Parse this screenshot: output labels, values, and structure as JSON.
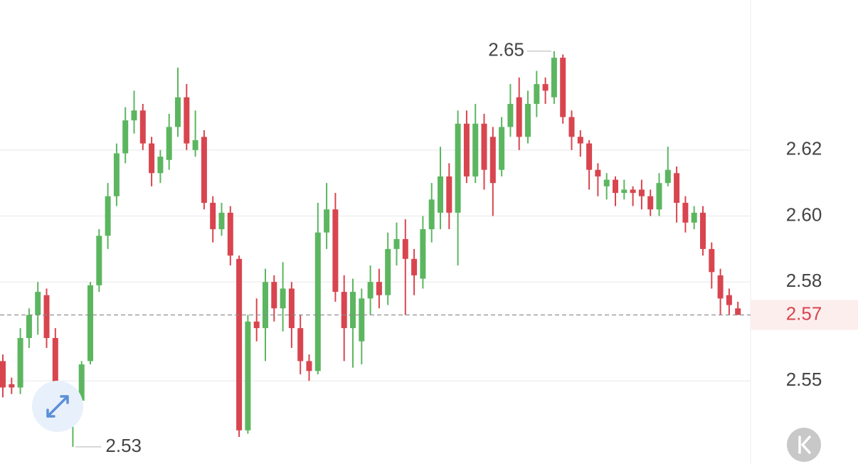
{
  "chart_data": {
    "type": "candlestick",
    "open": [
      2.556,
      2.549,
      2.548,
      2.563,
      2.57,
      2.576,
      2.563,
      2.546,
      2.539,
      2.544,
      2.556,
      2.579,
      2.594,
      2.606,
      2.619,
      2.629,
      2.632,
      2.622,
      2.613,
      2.617,
      2.627,
      2.636,
      2.62,
      2.624,
      2.604,
      2.596,
      2.601,
      2.587,
      2.535,
      2.568,
      2.566,
      2.58,
      2.572,
      2.578,
      2.566,
      2.556,
      2.553,
      2.595,
      2.602,
      2.577,
      2.566,
      2.562,
      2.575,
      2.58,
      2.576,
      2.59,
      2.593,
      2.587,
      2.581,
      2.596,
      2.601,
      2.612,
      2.601,
      2.628,
      2.612,
      2.628,
      2.624,
      2.614,
      2.627,
      2.636,
      2.624,
      2.634,
      2.64,
      2.636,
      2.648,
      2.63,
      2.624,
      2.622,
      2.614,
      2.609,
      2.611,
      2.607,
      2.608,
      2.608,
      2.606,
      2.602,
      2.61,
      2.613,
      2.604,
      2.598,
      2.601,
      2.59,
      2.582,
      2.576,
      2.572
    ],
    "high": [
      2.558,
      2.551,
      2.566,
      2.572,
      2.58,
      2.578,
      2.566,
      2.548,
      2.546,
      2.556,
      2.58,
      2.596,
      2.61,
      2.622,
      2.633,
      2.638,
      2.634,
      2.624,
      2.62,
      2.631,
      2.645,
      2.64,
      2.632,
      2.626,
      2.606,
      2.604,
      2.603,
      2.588,
      2.57,
      2.575,
      2.584,
      2.582,
      2.586,
      2.58,
      2.57,
      2.558,
      2.604,
      2.61,
      2.607,
      2.582,
      2.581,
      2.578,
      2.585,
      2.584,
      2.595,
      2.598,
      2.599,
      2.59,
      2.6,
      2.61,
      2.621,
      2.616,
      2.632,
      2.632,
      2.634,
      2.631,
      2.627,
      2.63,
      2.64,
      2.642,
      2.638,
      2.644,
      2.642,
      2.65,
      2.649,
      2.632,
      2.626,
      2.623,
      2.616,
      2.613,
      2.612,
      2.611,
      2.609,
      2.611,
      2.608,
      2.613,
      2.621,
      2.615,
      2.606,
      2.603,
      2.603,
      2.592,
      2.584,
      2.578,
      2.574
    ],
    "low": [
      2.545,
      2.546,
      2.546,
      2.56,
      2.564,
      2.56,
      2.54,
      2.538,
      2.53,
      2.541,
      2.555,
      2.577,
      2.59,
      2.603,
      2.616,
      2.625,
      2.62,
      2.609,
      2.61,
      2.614,
      2.624,
      2.62,
      2.618,
      2.602,
      2.592,
      2.594,
      2.585,
      2.533,
      2.534,
      2.562,
      2.556,
      2.568,
      2.565,
      2.56,
      2.552,
      2.55,
      2.552,
      2.59,
      2.574,
      2.556,
      2.554,
      2.555,
      2.57,
      2.572,
      2.573,
      2.585,
      2.57,
      2.576,
      2.578,
      2.592,
      2.596,
      2.596,
      2.585,
      2.61,
      2.61,
      2.608,
      2.6,
      2.612,
      2.624,
      2.62,
      2.622,
      2.63,
      2.634,
      2.634,
      2.628,
      2.62,
      2.618,
      2.608,
      2.606,
      2.605,
      2.603,
      2.605,
      2.603,
      2.602,
      2.6,
      2.6,
      2.609,
      2.598,
      2.595,
      2.596,
      2.588,
      2.578,
      2.57,
      2.57,
      2.57
    ],
    "close": [
      2.548,
      2.548,
      2.563,
      2.57,
      2.577,
      2.563,
      2.545,
      2.54,
      2.544,
      2.555,
      2.579,
      2.594,
      2.606,
      2.619,
      2.629,
      2.632,
      2.622,
      2.613,
      2.618,
      2.627,
      2.636,
      2.622,
      2.623,
      2.604,
      2.596,
      2.601,
      2.588,
      2.535,
      2.568,
      2.566,
      2.58,
      2.572,
      2.578,
      2.566,
      2.556,
      2.553,
      2.595,
      2.602,
      2.577,
      2.566,
      2.577,
      2.575,
      2.58,
      2.576,
      2.59,
      2.593,
      2.587,
      2.582,
      2.596,
      2.605,
      2.612,
      2.601,
      2.628,
      2.612,
      2.628,
      2.614,
      2.61,
      2.627,
      2.634,
      2.624,
      2.634,
      2.64,
      2.638,
      2.648,
      2.63,
      2.624,
      2.622,
      2.614,
      2.612,
      2.611,
      2.607,
      2.608,
      2.607,
      2.606,
      2.602,
      2.61,
      2.614,
      2.604,
      2.598,
      2.601,
      2.59,
      2.583,
      2.575,
      2.573,
      2.57
    ],
    "up_color": "#5cb660",
    "down_color": "#d8454f",
    "ylim": [
      2.5248,
      2.6655
    ],
    "yticks": [
      2.62,
      {
        "value": 2.6,
        "label": "2.60"
      },
      2.58,
      2.55
    ],
    "grid": true
  }
}
